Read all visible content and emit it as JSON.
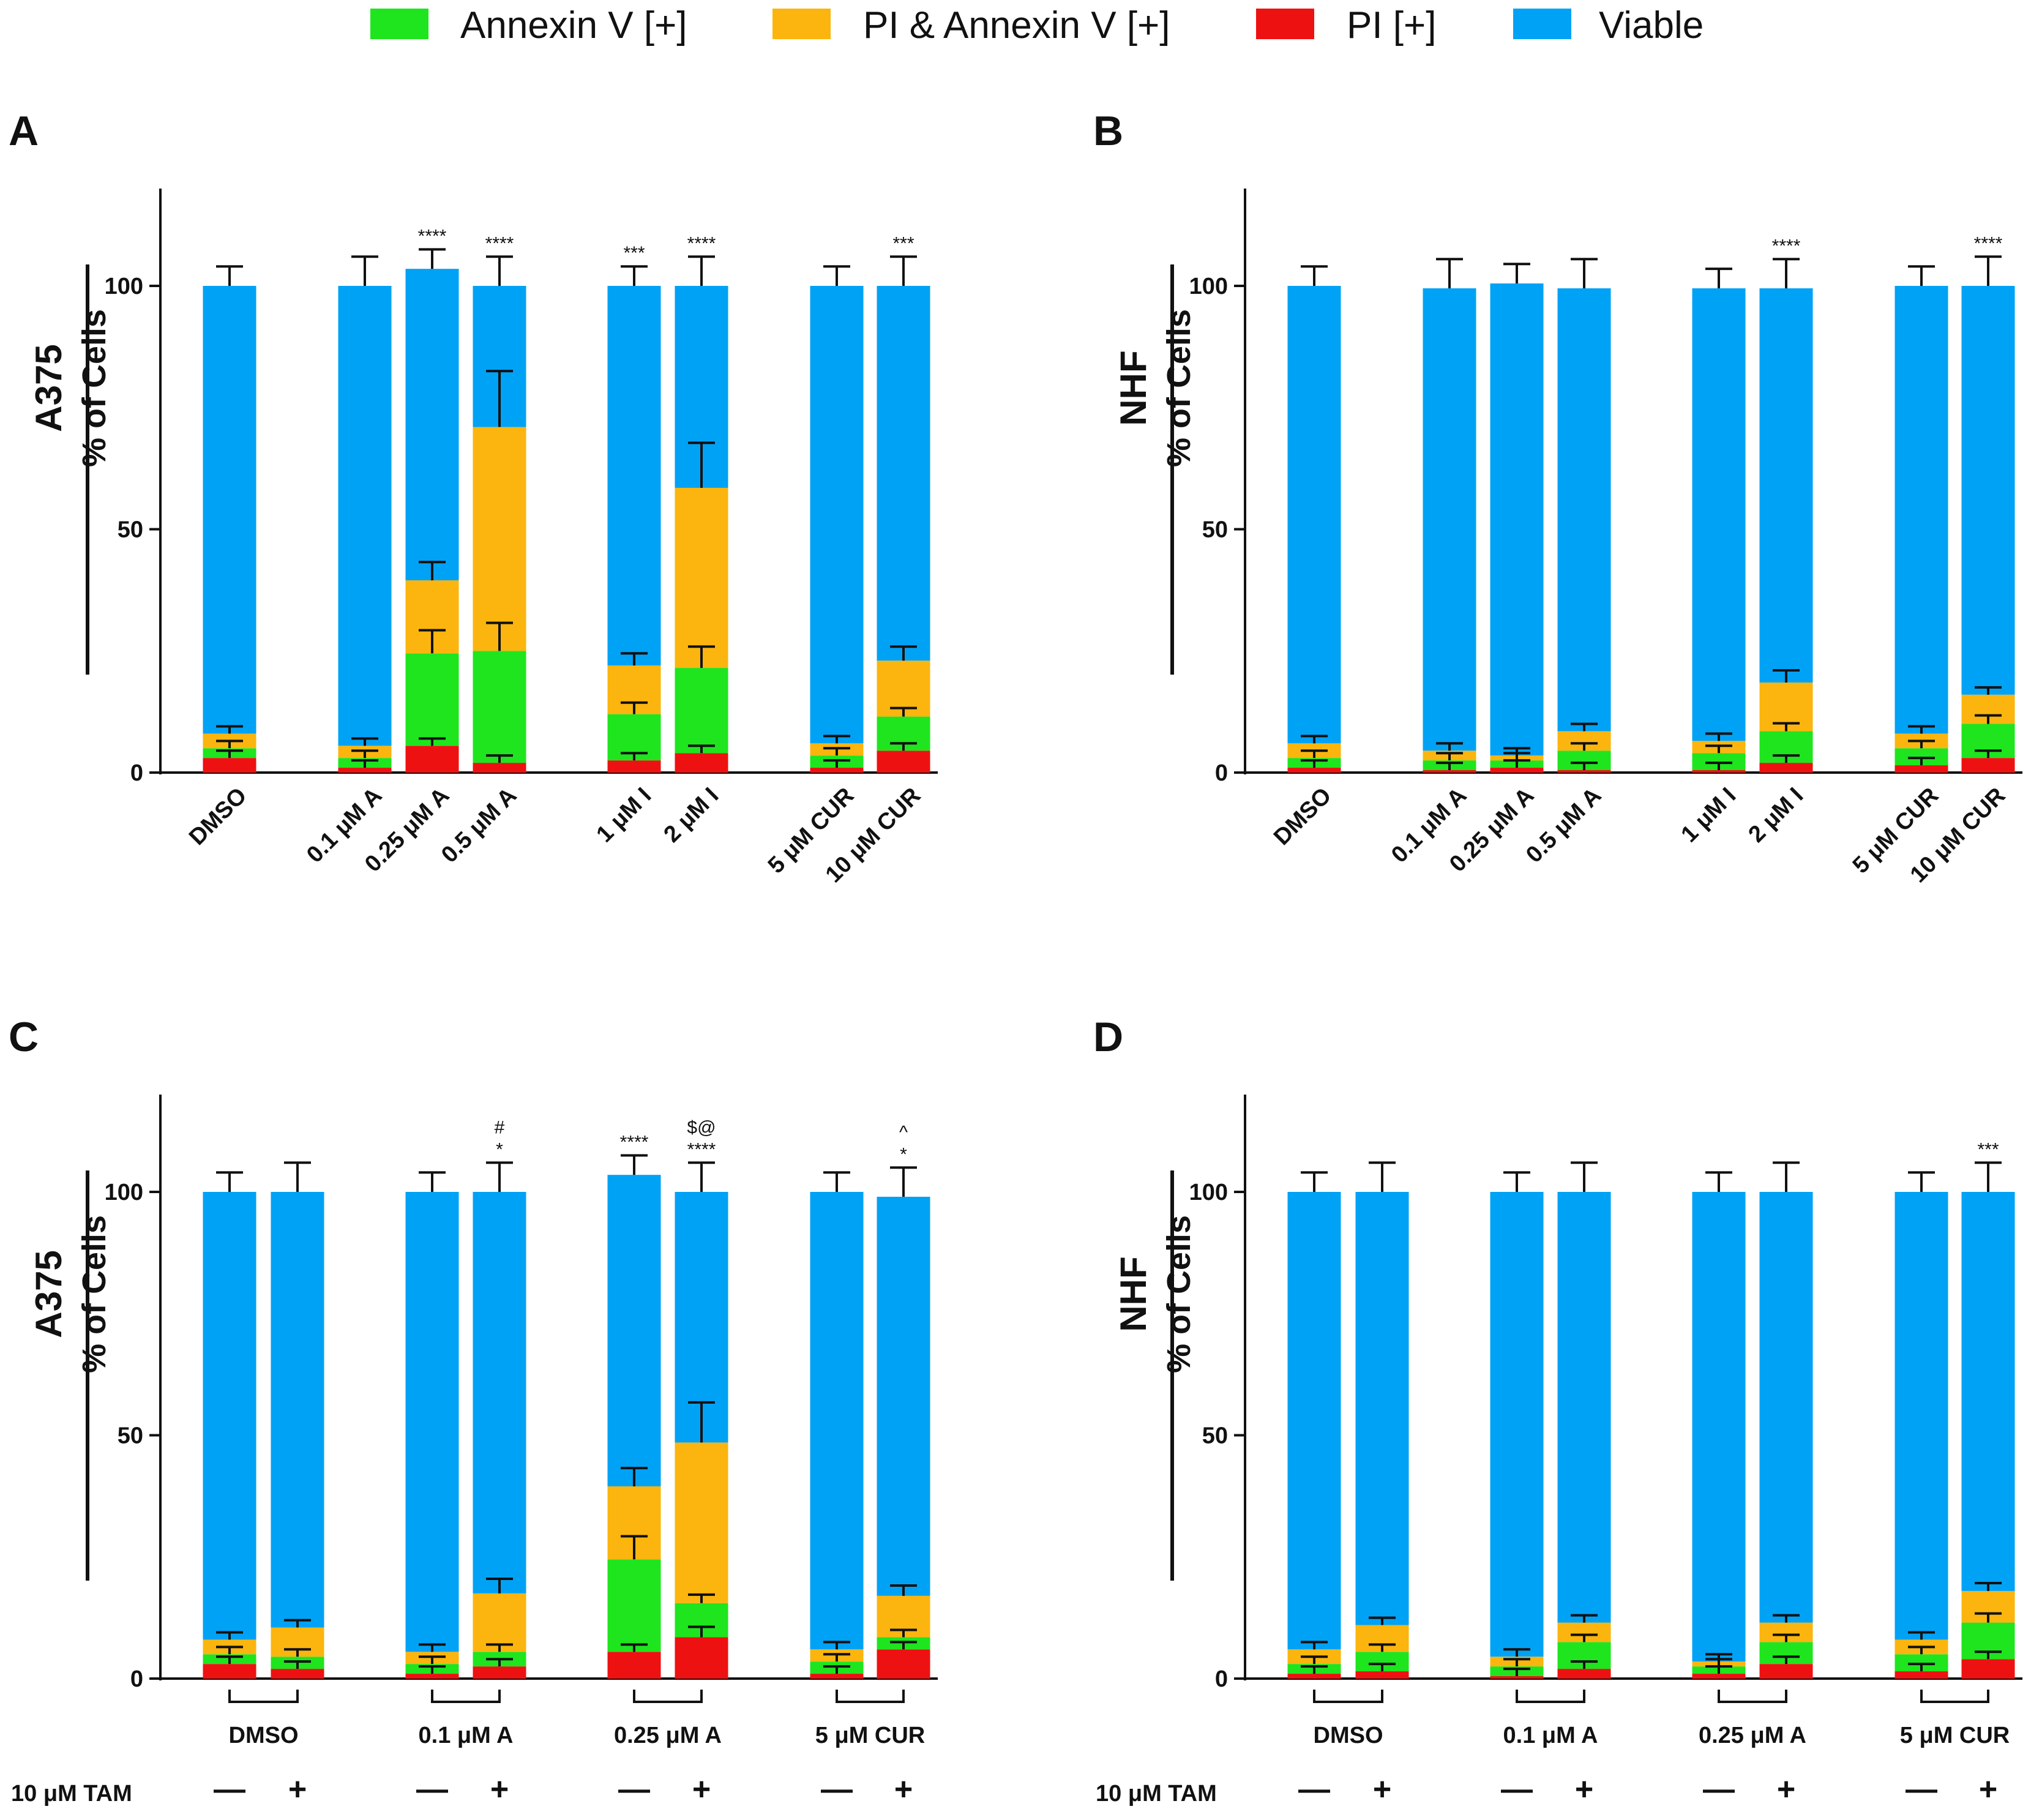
{
  "colors": {
    "annexin": "#1ee51e",
    "pi_annexin": "#fbb50e",
    "pi": "#ee1111",
    "viable": "#00a2f5"
  },
  "legend": {
    "annexin": "Annexin V [+]",
    "pi_annexin": "PI & Annexin V [+]",
    "pi": "PI [+]",
    "viable": "Viable"
  },
  "tam_label": "10 μM TAM",
  "chart_data": [
    {
      "panel": "A",
      "type": "bar",
      "stacked": true,
      "cell_label": "A375",
      "ylabel": "% of Cells",
      "ylim": [
        0,
        120
      ],
      "yticks": [
        "0",
        "50",
        "100"
      ],
      "categories": [
        "DMSO",
        "0.1 μM A",
        "0.25 μM A",
        "0.5 μM A",
        "1 μM I",
        "2 μM I",
        "5 μM CUR",
        "10 μM CUR"
      ],
      "series": [
        {
          "name": "PI [+]",
          "values": [
            3,
            1,
            5.5,
            2,
            2.5,
            4,
            1,
            4.5
          ]
        },
        {
          "name": "Annexin V [+]",
          "values": [
            2,
            2,
            19,
            23,
            9.5,
            17.5,
            2.5,
            7
          ]
        },
        {
          "name": "PI & Annexin V [+]",
          "values": [
            3,
            2.5,
            15,
            46,
            10,
            37,
            2.5,
            11.5
          ]
        },
        {
          "name": "Viable",
          "values": [
            92,
            94.5,
            64,
            29,
            78,
            41.5,
            94,
            77
          ]
        }
      ],
      "significance": [
        [],
        [],
        [
          "****"
        ],
        [
          "****"
        ],
        [
          "***"
        ],
        [
          "****"
        ],
        [],
        [
          "***"
        ]
      ]
    },
    {
      "panel": "B",
      "type": "bar",
      "stacked": true,
      "cell_label": "NHF",
      "ylabel": "% of Cells",
      "ylim": [
        0,
        120
      ],
      "yticks": [
        "0",
        "50",
        "100"
      ],
      "categories": [
        "DMSO",
        "0.1 μM A",
        "0.25 μM A",
        "0.5 μM A",
        "1 μM I",
        "2 μM I",
        "5 μM CUR",
        "10 μM CUR"
      ],
      "series": [
        {
          "name": "PI [+]",
          "values": [
            1,
            0.5,
            1,
            0.5,
            0.5,
            2,
            1.5,
            3
          ]
        },
        {
          "name": "Annexin V [+]",
          "values": [
            2,
            2,
            1.5,
            4,
            3.5,
            6.5,
            3.5,
            7
          ]
        },
        {
          "name": "PI & Annexin V [+]",
          "values": [
            3,
            2,
            1,
            4,
            2.5,
            10,
            3,
            6
          ]
        },
        {
          "name": "Viable",
          "values": [
            94,
            95,
            97,
            91,
            93,
            81,
            92,
            84
          ]
        }
      ],
      "significance": [
        [],
        [],
        [],
        [],
        [],
        [
          "****"
        ],
        [],
        [
          "****"
        ]
      ]
    },
    {
      "panel": "C",
      "type": "bar",
      "stacked": true,
      "cell_label": "A375",
      "ylabel": "% of Cells",
      "ylim": [
        0,
        120
      ],
      "yticks": [
        "0",
        "50",
        "100"
      ],
      "groups": [
        "DMSO",
        "0.1 μM A",
        "0.25 μM A",
        "5 μM CUR"
      ],
      "tam": [
        "—",
        "+",
        "—",
        "+",
        "—",
        "+",
        "—",
        "+"
      ],
      "series": [
        {
          "name": "PI [+]",
          "values": [
            3,
            2,
            1,
            2.5,
            5.5,
            8.5,
            1,
            6
          ]
        },
        {
          "name": "Annexin V [+]",
          "values": [
            2,
            2.5,
            2,
            3,
            19,
            7,
            2.5,
            2.5
          ]
        },
        {
          "name": "PI & Annexin V [+]",
          "values": [
            3,
            6,
            2.5,
            12,
            15,
            33,
            2.5,
            8.5
          ]
        },
        {
          "name": "Viable",
          "values": [
            92,
            89.5,
            94.5,
            82.5,
            64,
            51.5,
            94,
            82
          ]
        }
      ],
      "significance": [
        [],
        [],
        [],
        [
          "*",
          "#"
        ],
        [
          "****"
        ],
        [
          "****",
          "$@"
        ],
        [],
        [
          "*",
          "^"
        ]
      ]
    },
    {
      "panel": "D",
      "type": "bar",
      "stacked": true,
      "cell_label": "NHF",
      "ylabel": "% of Cells",
      "ylim": [
        0,
        120
      ],
      "yticks": [
        "0",
        "50",
        "100"
      ],
      "groups": [
        "DMSO",
        "0.1 μM A",
        "0.25 μM A",
        "5 μM CUR"
      ],
      "tam": [
        "—",
        "+",
        "—",
        "+",
        "—",
        "+",
        "—",
        "+"
      ],
      "series": [
        {
          "name": "PI [+]",
          "values": [
            1,
            1.5,
            0.5,
            2,
            1,
            3,
            1.5,
            4
          ]
        },
        {
          "name": "Annexin V [+]",
          "values": [
            2,
            4,
            2,
            5.5,
            1.5,
            4.5,
            3.5,
            7.5
          ]
        },
        {
          "name": "PI & Annexin V [+]",
          "values": [
            3,
            5.5,
            2,
            4,
            1,
            4,
            3,
            6.5
          ]
        },
        {
          "name": "Viable",
          "values": [
            94,
            89,
            95.5,
            88.5,
            96.5,
            88.5,
            92,
            82
          ]
        }
      ],
      "significance": [
        [],
        [],
        [],
        [],
        [],
        [],
        [],
        [
          "***"
        ]
      ]
    }
  ]
}
